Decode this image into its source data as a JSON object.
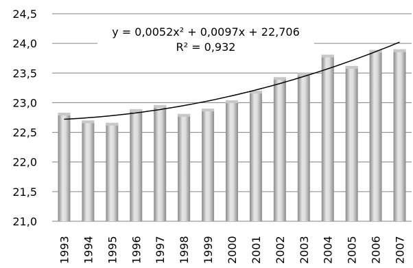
{
  "chart_data": {
    "type": "bar",
    "title": "",
    "xlabel": "",
    "ylabel": "",
    "categories": [
      "1993",
      "1994",
      "1995",
      "1996",
      "1997",
      "1998",
      "1999",
      "2000",
      "2001",
      "2002",
      "2003",
      "2004",
      "2005",
      "2006",
      "2007"
    ],
    "values": [
      22.83,
      22.7,
      22.66,
      22.89,
      22.96,
      22.81,
      22.9,
      23.04,
      23.2,
      23.43,
      23.5,
      23.81,
      23.62,
      23.89,
      23.9
    ],
    "ylim": [
      21.0,
      24.5
    ],
    "yticks": [
      21.0,
      21.5,
      22.0,
      22.5,
      23.0,
      23.5,
      24.0,
      24.5
    ],
    "ytick_labels": [
      "21,0",
      "21,5",
      "22,0",
      "22,5",
      "23,0",
      "23,5",
      "24,0",
      "24,5"
    ],
    "grid": true,
    "trendline": {
      "type": "polynomial",
      "order": 2,
      "coefficients": {
        "a": 0.0052,
        "b": 0.0097,
        "c": 22.706
      },
      "equation_label": "y = 0,0052x² + 0,0097x + 22,706",
      "r2_label": "R² = 0,932"
    },
    "colors": {
      "bar_light": "#e2e2e2",
      "bar_dark": "#8e8e8e",
      "grid": "#808080",
      "trendline": "#000000"
    }
  }
}
